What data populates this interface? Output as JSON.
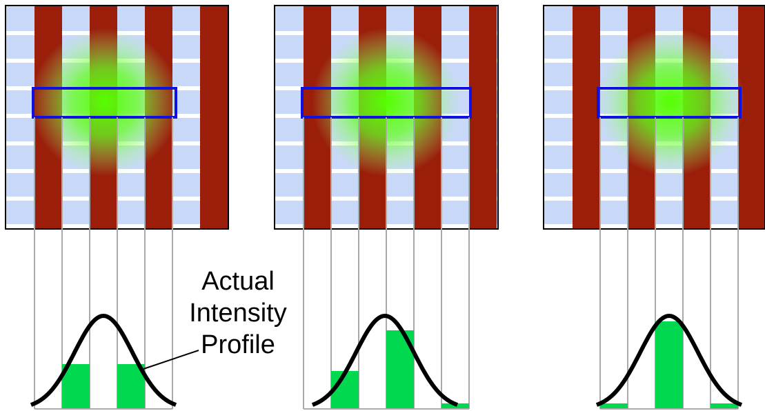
{
  "annotation": {
    "lines": [
      "Actual",
      "Intensity",
      "Profile"
    ]
  }
}
